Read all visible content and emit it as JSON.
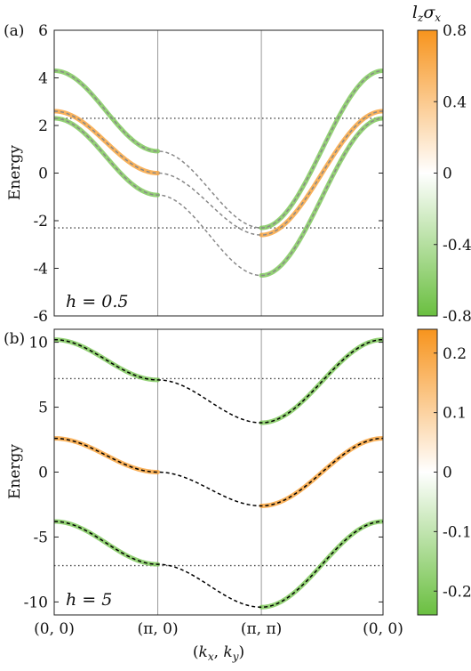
{
  "figure": {
    "x_tick_labels": [
      "(0, 0)",
      "(π, 0)",
      "(π, π)",
      "(0, 0)"
    ],
    "x_label": "(k_x, k_y)",
    "colorbar_label": "l_zσ_x",
    "colors": {
      "positive": "#f7941d",
      "negative": "#6abf40",
      "neutral": "#ffffff",
      "dashed_line": "#888888",
      "dashed_line_b": "#000000",
      "dotted_line": "#444444",
      "symmetry_line": "#999999"
    }
  },
  "chart_data": [
    {
      "type": "line",
      "panel": "(a)",
      "annotation": "h = 0.5",
      "h": 0.5,
      "ylabel": "Energy",
      "ylim": [
        -6,
        6
      ],
      "yticks": [
        -6,
        -4,
        -2,
        0,
        2,
        4,
        6
      ],
      "ytick_labels": [
        "-6",
        "-4",
        "-2",
        "0",
        "2",
        "4",
        "6"
      ],
      "x_path": [
        "(0,0)",
        "(π,0)",
        "(π,π)",
        "(0,0)"
      ],
      "dotted_lines_y": [
        2.3,
        -2.3
      ],
      "colorbar_ticks": [
        0.8,
        0.4,
        0,
        -0.4,
        -0.8
      ],
      "colorbar_tick_labels": [
        "0.8",
        "0.4",
        "0",
        "-0.4",
        "-0.8"
      ],
      "colorbar_range": [
        -0.8,
        0.8
      ],
      "series": [
        {
          "values": [
            4.3,
            0.92,
            -2.3,
            4.3
          ]
        },
        {
          "values": [
            2.6,
            0.0,
            -2.6,
            2.6
          ]
        },
        {
          "values": [
            2.3,
            -0.92,
            -4.3,
            2.3
          ]
        }
      ]
    },
    {
      "type": "line",
      "panel": "(b)",
      "annotation": "h = 5",
      "h": 5,
      "ylabel": "Energy",
      "ylim": [
        -11,
        11
      ],
      "yticks": [
        -10,
        -5,
        0,
        5,
        10
      ],
      "ytick_labels": [
        "-10",
        "-5",
        "0",
        "5",
        "10"
      ],
      "x_path": [
        "(0,0)",
        "(π,0)",
        "(π,π)",
        "(0,0)"
      ],
      "dotted_lines_y": [
        7.2,
        -7.2
      ],
      "colorbar_ticks": [
        0.2,
        0.1,
        0,
        -0.1,
        -0.2
      ],
      "colorbar_tick_labels": [
        "0.2",
        "0.1",
        "0",
        "-0.1",
        "-0.2"
      ],
      "colorbar_range": [
        -0.24,
        0.24
      ],
      "series": [
        {
          "values": [
            10.2,
            7.1,
            3.8,
            10.2
          ]
        },
        {
          "values": [
            2.6,
            0.0,
            -2.6,
            2.6
          ]
        },
        {
          "values": [
            -3.8,
            -7.1,
            -10.4,
            -3.8
          ]
        }
      ]
    }
  ]
}
